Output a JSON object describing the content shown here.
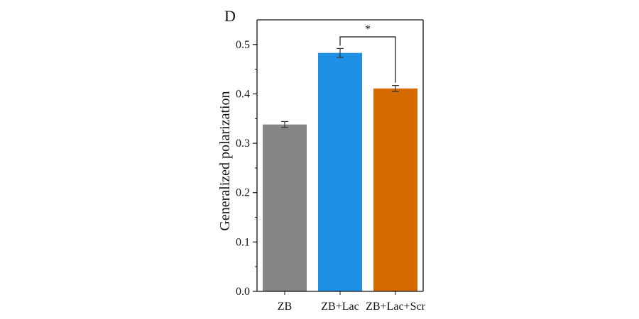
{
  "panel_label": "D",
  "chart_data": {
    "type": "bar",
    "title": "",
    "xlabel": "",
    "ylabel": "Generalized polarization",
    "categories": [
      "ZB",
      "ZB+Lac",
      "ZB+Lac+Scr"
    ],
    "values": [
      0.338,
      0.483,
      0.411
    ],
    "errors": [
      0.006,
      0.009,
      0.006
    ],
    "colors": [
      "#858585",
      "#1e90e6",
      "#d46a00"
    ],
    "ylim": [
      0,
      0.55
    ],
    "yticks": [
      0.0,
      0.1,
      0.2,
      0.3,
      0.4,
      0.5
    ],
    "ytick_labels": [
      "0.0",
      "0.1",
      "0.2",
      "0.3",
      "0.4",
      "0.5"
    ],
    "grid": false,
    "legend": "none",
    "significance": {
      "between": [
        1,
        2
      ],
      "label": "*"
    }
  }
}
